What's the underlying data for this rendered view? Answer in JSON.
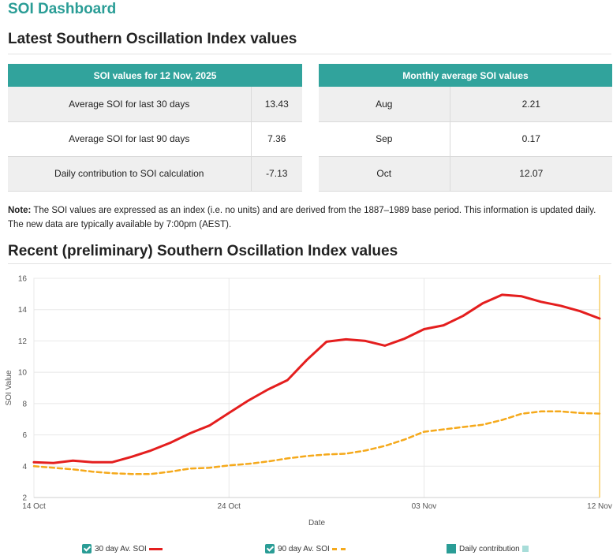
{
  "app": {
    "title": "SOI Dashboard"
  },
  "latest": {
    "heading": "Latest Southern Oscillation Index values",
    "daily_table": {
      "header": "SOI values for 12 Nov, 2025",
      "rows": [
        {
          "label": "Average SOI for last 30 days",
          "value": "13.43"
        },
        {
          "label": "Average SOI for last 90 days",
          "value": "7.36"
        },
        {
          "label": "Daily contribution to SOI calculation",
          "value": "-7.13"
        }
      ]
    },
    "monthly_table": {
      "header": "Monthly average SOI values",
      "rows": [
        {
          "month": "Aug",
          "value": "2.21"
        },
        {
          "month": "Sep",
          "value": "0.17"
        },
        {
          "month": "Oct",
          "value": "12.07"
        }
      ]
    },
    "note_label": "Note:",
    "note_text": " The SOI values are expressed as an index (i.e. no units) and are derived from the 1887–1989 base period. This information is updated daily. The new data are typically available by 7:00pm (AEST)."
  },
  "recent": {
    "heading": "Recent (preliminary) Southern Oscillation Index values"
  },
  "legend": {
    "items": [
      {
        "label": "30 day Av. SOI",
        "checked": true
      },
      {
        "label": "90 day Av. SOI",
        "checked": true
      },
      {
        "label": "Daily contribution",
        "checked": false
      }
    ]
  },
  "colors": {
    "accent": "#2a9d96",
    "header": "#31a39c",
    "soi30": "#e41e1e",
    "soi90": "#f5a91b",
    "marker": "#f5c242"
  },
  "chart_data": {
    "type": "line",
    "xlabel": "Date",
    "ylabel": "SOI Value",
    "ylim": [
      2,
      16
    ],
    "yticks": [
      2,
      4,
      6,
      8,
      10,
      12,
      14,
      16
    ],
    "xlim": [
      0,
      29
    ],
    "xticks": [
      {
        "day": 0,
        "label": "14 Oct"
      },
      {
        "day": 10,
        "label": "24 Oct"
      },
      {
        "day": 20,
        "label": "03 Nov"
      },
      {
        "day": 29,
        "label": "12 Nov"
      }
    ],
    "x": [
      0,
      1,
      2,
      3,
      4,
      5,
      6,
      7,
      8,
      9,
      10,
      11,
      12,
      13,
      14,
      15,
      16,
      17,
      18,
      19,
      20,
      21,
      22,
      23,
      24,
      25,
      26,
      27,
      28,
      29
    ],
    "series": [
      {
        "name": "30 day Av. SOI",
        "values": [
          4.25,
          4.2,
          4.35,
          4.25,
          4.25,
          4.6,
          5.0,
          5.5,
          6.1,
          6.6,
          7.4,
          8.2,
          8.9,
          9.5,
          10.8,
          11.95,
          12.1,
          12.0,
          11.7,
          12.15,
          12.75,
          13.0,
          13.6,
          14.4,
          14.95,
          14.85,
          14.5,
          14.25,
          13.9,
          13.43
        ]
      },
      {
        "name": "90 day Av. SOI",
        "values": [
          4.0,
          3.9,
          3.8,
          3.65,
          3.55,
          3.5,
          3.5,
          3.65,
          3.85,
          3.9,
          4.05,
          4.15,
          4.3,
          4.5,
          4.65,
          4.75,
          4.8,
          5.0,
          5.3,
          5.7,
          6.2,
          6.35,
          6.5,
          6.65,
          6.95,
          7.35,
          7.5,
          7.5,
          7.4,
          7.36
        ]
      }
    ],
    "marker_day": 29
  }
}
